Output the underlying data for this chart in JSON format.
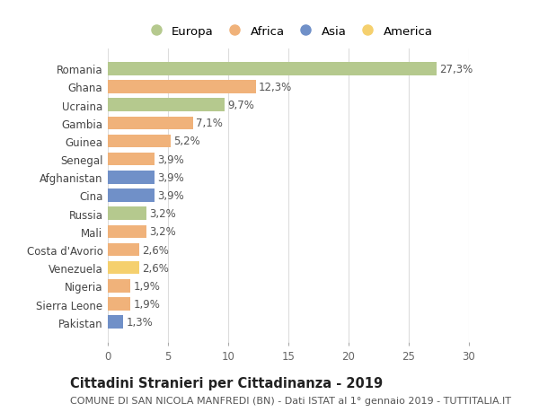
{
  "countries": [
    "Romania",
    "Ghana",
    "Ucraina",
    "Gambia",
    "Guinea",
    "Senegal",
    "Afghanistan",
    "Cina",
    "Russia",
    "Mali",
    "Costa d'Avorio",
    "Venezuela",
    "Nigeria",
    "Sierra Leone",
    "Pakistan"
  ],
  "values": [
    27.3,
    12.3,
    9.7,
    7.1,
    5.2,
    3.9,
    3.9,
    3.9,
    3.2,
    3.2,
    2.6,
    2.6,
    1.9,
    1.9,
    1.3
  ],
  "labels": [
    "27,3%",
    "12,3%",
    "9,7%",
    "7,1%",
    "5,2%",
    "3,9%",
    "3,9%",
    "3,9%",
    "3,2%",
    "3,2%",
    "2,6%",
    "2,6%",
    "1,9%",
    "1,9%",
    "1,3%"
  ],
  "continents": [
    "Europa",
    "Africa",
    "Europa",
    "Africa",
    "Africa",
    "Africa",
    "Asia",
    "Asia",
    "Europa",
    "Africa",
    "Africa",
    "America",
    "Africa",
    "Africa",
    "Asia"
  ],
  "continent_colors": {
    "Europa": "#b5c98e",
    "Africa": "#f0b27a",
    "Asia": "#7090c8",
    "America": "#f5d06e"
  },
  "legend_order": [
    "Europa",
    "Africa",
    "Asia",
    "America"
  ],
  "xlim": [
    0,
    30
  ],
  "xticks": [
    0,
    5,
    10,
    15,
    20,
    25,
    30
  ],
  "title1": "Cittadini Stranieri per Cittadinanza - 2019",
  "title2": "COMUNE DI SAN NICOLA MANFREDI (BN) - Dati ISTAT al 1° gennaio 2019 - TUTTITALIA.IT",
  "background_color": "#ffffff",
  "grid_color": "#dddddd",
  "label_fontsize": 8.5,
  "tick_fontsize": 8.5,
  "title1_fontsize": 10.5,
  "title2_fontsize": 8,
  "legend_fontsize": 9.5
}
